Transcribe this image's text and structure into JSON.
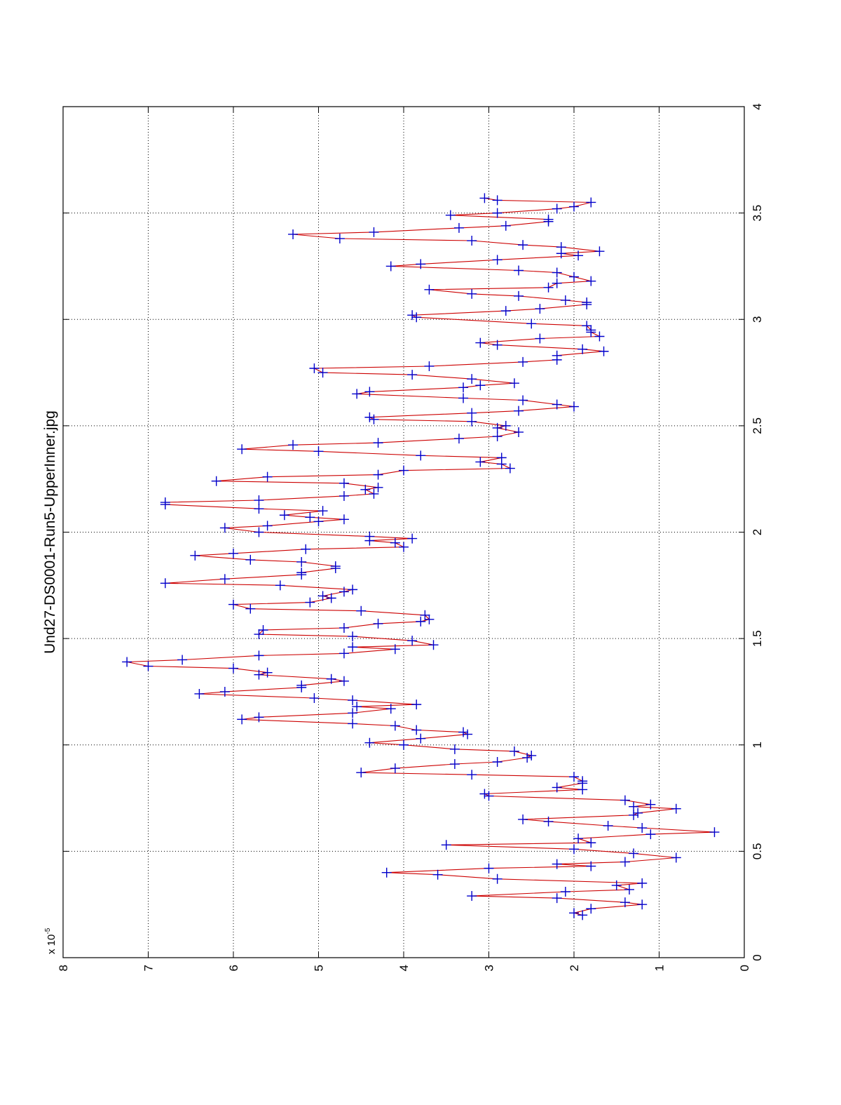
{
  "chart_data": {
    "type": "line",
    "title": "Und27-DS0001-Run5-UpperInner.jpg",
    "xlabel": "",
    "ylabel": "",
    "x_range": [
      0,
      4
    ],
    "y_range": [
      0,
      8
    ],
    "x_ticks": [
      "0",
      "0.5",
      "1",
      "1.5",
      "2",
      "2.5",
      "3",
      "3.5",
      "4"
    ],
    "y_ticks": [
      "0",
      "1",
      "2",
      "3",
      "4",
      "5",
      "6",
      "7",
      "8"
    ],
    "y_exponent": {
      "base": "x 10",
      "power": "-5"
    },
    "grid": true,
    "orientation": "rotated-90-ccw",
    "line_color": "#cc0000",
    "marker_color": "#0000cc",
    "marker": "+",
    "series": [
      {
        "name": "UpperInner",
        "points": [
          [
            0.2,
            1.9
          ],
          [
            0.21,
            2.0
          ],
          [
            0.23,
            1.8
          ],
          [
            0.25,
            1.2
          ],
          [
            0.26,
            1.4
          ],
          [
            0.28,
            2.2
          ],
          [
            0.29,
            3.2
          ],
          [
            0.31,
            2.1
          ],
          [
            0.32,
            1.35
          ],
          [
            0.34,
            1.5
          ],
          [
            0.35,
            1.2
          ],
          [
            0.37,
            2.9
          ],
          [
            0.39,
            3.6
          ],
          [
            0.4,
            4.2
          ],
          [
            0.42,
            3.0
          ],
          [
            0.43,
            1.8
          ],
          [
            0.44,
            2.2
          ],
          [
            0.45,
            1.4
          ],
          [
            0.47,
            0.8
          ],
          [
            0.49,
            1.3
          ],
          [
            0.51,
            2.0
          ],
          [
            0.53,
            3.5
          ],
          [
            0.54,
            1.8
          ],
          [
            0.56,
            1.95
          ],
          [
            0.58,
            1.1
          ],
          [
            0.59,
            0.35
          ],
          [
            0.61,
            1.2
          ],
          [
            0.62,
            1.6
          ],
          [
            0.64,
            2.3
          ],
          [
            0.65,
            2.6
          ],
          [
            0.67,
            1.3
          ],
          [
            0.68,
            1.25
          ],
          [
            0.7,
            0.8
          ],
          [
            0.71,
            1.3
          ],
          [
            0.72,
            1.1
          ],
          [
            0.74,
            1.4
          ],
          [
            0.76,
            3.0
          ],
          [
            0.77,
            3.05
          ],
          [
            0.79,
            1.9
          ],
          [
            0.8,
            2.2
          ],
          [
            0.82,
            1.9
          ],
          [
            0.83,
            1.9
          ],
          [
            0.85,
            2.0
          ],
          [
            0.86,
            3.2
          ],
          [
            0.87,
            4.5
          ],
          [
            0.89,
            4.1
          ],
          [
            0.91,
            3.4
          ],
          [
            0.92,
            2.9
          ],
          [
            0.94,
            2.55
          ],
          [
            0.95,
            2.5
          ],
          [
            0.97,
            2.7
          ],
          [
            0.98,
            3.4
          ],
          [
            1.0,
            4.0
          ],
          [
            1.01,
            4.4
          ],
          [
            1.03,
            3.8
          ],
          [
            1.05,
            3.25
          ],
          [
            1.06,
            3.3
          ],
          [
            1.07,
            3.85
          ],
          [
            1.09,
            4.1
          ],
          [
            1.1,
            4.6
          ],
          [
            1.12,
            5.9
          ],
          [
            1.13,
            5.7
          ],
          [
            1.15,
            4.6
          ],
          [
            1.17,
            4.15
          ],
          [
            1.18,
            4.55
          ],
          [
            1.19,
            3.85
          ],
          [
            1.21,
            4.6
          ],
          [
            1.22,
            5.05
          ],
          [
            1.24,
            6.4
          ],
          [
            1.25,
            6.1
          ],
          [
            1.27,
            5.2
          ],
          [
            1.28,
            5.2
          ],
          [
            1.3,
            4.7
          ],
          [
            1.31,
            4.85
          ],
          [
            1.33,
            5.7
          ],
          [
            1.34,
            5.6
          ],
          [
            1.36,
            6.0
          ],
          [
            1.37,
            7.0
          ],
          [
            1.39,
            7.25
          ],
          [
            1.4,
            6.6
          ],
          [
            1.42,
            5.7
          ],
          [
            1.43,
            4.7
          ],
          [
            1.45,
            4.1
          ],
          [
            1.46,
            4.6
          ],
          [
            1.47,
            3.65
          ],
          [
            1.49,
            3.9
          ],
          [
            1.51,
            4.6
          ],
          [
            1.52,
            5.7
          ],
          [
            1.54,
            5.65
          ],
          [
            1.55,
            4.7
          ],
          [
            1.57,
            4.3
          ],
          [
            1.58,
            3.8
          ],
          [
            1.59,
            3.7
          ],
          [
            1.61,
            3.75
          ],
          [
            1.63,
            4.5
          ],
          [
            1.64,
            5.8
          ],
          [
            1.66,
            6.0
          ],
          [
            1.67,
            5.1
          ],
          [
            1.69,
            4.85
          ],
          [
            1.7,
            4.95
          ],
          [
            1.72,
            4.7
          ],
          [
            1.73,
            4.6
          ],
          [
            1.75,
            5.45
          ],
          [
            1.76,
            6.8
          ],
          [
            1.78,
            6.1
          ],
          [
            1.8,
            5.2
          ],
          [
            1.81,
            5.2
          ],
          [
            1.83,
            4.8
          ],
          [
            1.84,
            4.8
          ],
          [
            1.86,
            5.2
          ],
          [
            1.87,
            5.8
          ],
          [
            1.89,
            6.45
          ],
          [
            1.9,
            6.0
          ],
          [
            1.92,
            5.15
          ],
          [
            1.93,
            4.0
          ],
          [
            1.95,
            4.1
          ],
          [
            1.96,
            4.4
          ],
          [
            1.97,
            3.9
          ],
          [
            1.98,
            4.4
          ],
          [
            2.0,
            5.7
          ],
          [
            2.02,
            6.1
          ],
          [
            2.03,
            5.6
          ],
          [
            2.05,
            5.0
          ],
          [
            2.06,
            4.7
          ],
          [
            2.07,
            5.1
          ],
          [
            2.08,
            5.4
          ],
          [
            2.1,
            4.95
          ],
          [
            2.11,
            5.7
          ],
          [
            2.13,
            6.8
          ],
          [
            2.14,
            6.8
          ],
          [
            2.15,
            5.7
          ],
          [
            2.17,
            4.7
          ],
          [
            2.18,
            4.35
          ],
          [
            2.2,
            4.45
          ],
          [
            2.21,
            4.3
          ],
          [
            2.23,
            4.7
          ],
          [
            2.24,
            6.2
          ],
          [
            2.26,
            5.6
          ],
          [
            2.27,
            4.3
          ],
          [
            2.29,
            4.0
          ],
          [
            2.3,
            2.75
          ],
          [
            2.32,
            2.85
          ],
          [
            2.33,
            3.1
          ],
          [
            2.35,
            2.85
          ],
          [
            2.36,
            3.8
          ],
          [
            2.38,
            5.0
          ],
          [
            2.39,
            5.9
          ],
          [
            2.41,
            5.3
          ],
          [
            2.42,
            4.3
          ],
          [
            2.44,
            3.35
          ],
          [
            2.45,
            2.9
          ],
          [
            2.47,
            2.65
          ],
          [
            2.49,
            2.9
          ],
          [
            2.5,
            2.8
          ],
          [
            2.52,
            3.2
          ],
          [
            2.53,
            4.35
          ],
          [
            2.54,
            4.4
          ],
          [
            2.56,
            3.2
          ],
          [
            2.57,
            2.65
          ],
          [
            2.59,
            2.0
          ],
          [
            2.6,
            2.2
          ],
          [
            2.62,
            2.6
          ],
          [
            2.63,
            3.3
          ],
          [
            2.65,
            4.55
          ],
          [
            2.66,
            4.4
          ],
          [
            2.68,
            3.3
          ],
          [
            2.69,
            3.1
          ],
          [
            2.7,
            2.7
          ],
          [
            2.72,
            3.2
          ],
          [
            2.74,
            3.9
          ],
          [
            2.75,
            4.95
          ],
          [
            2.77,
            5.05
          ],
          [
            2.78,
            3.7
          ],
          [
            2.8,
            2.6
          ],
          [
            2.81,
            2.2
          ],
          [
            2.83,
            2.2
          ],
          [
            2.85,
            1.65
          ],
          [
            2.86,
            1.9
          ],
          [
            2.88,
            2.9
          ],
          [
            2.89,
            3.1
          ],
          [
            2.91,
            2.4
          ],
          [
            2.92,
            1.7
          ],
          [
            2.94,
            1.8
          ],
          [
            2.95,
            1.8
          ],
          [
            2.97,
            1.85
          ],
          [
            2.98,
            2.5
          ],
          [
            3.01,
            3.85
          ],
          [
            3.02,
            3.9
          ],
          [
            3.04,
            2.8
          ],
          [
            3.05,
            2.4
          ],
          [
            3.07,
            1.85
          ],
          [
            3.08,
            1.85
          ],
          [
            3.09,
            2.1
          ],
          [
            3.11,
            2.65
          ],
          [
            3.12,
            3.2
          ],
          [
            3.14,
            3.7
          ],
          [
            3.15,
            2.3
          ],
          [
            3.17,
            2.2
          ],
          [
            3.18,
            1.8
          ],
          [
            3.2,
            2.0
          ],
          [
            3.22,
            2.2
          ],
          [
            3.23,
            2.65
          ],
          [
            3.25,
            4.15
          ],
          [
            3.26,
            3.8
          ],
          [
            3.28,
            2.9
          ],
          [
            3.3,
            1.95
          ],
          [
            3.31,
            2.15
          ],
          [
            3.32,
            1.7
          ],
          [
            3.34,
            2.15
          ],
          [
            3.35,
            2.6
          ],
          [
            3.37,
            3.2
          ],
          [
            3.38,
            4.75
          ],
          [
            3.4,
            5.3
          ],
          [
            3.41,
            4.35
          ],
          [
            3.43,
            3.35
          ],
          [
            3.44,
            2.8
          ],
          [
            3.46,
            2.3
          ],
          [
            3.47,
            2.3
          ],
          [
            3.49,
            3.45
          ],
          [
            3.5,
            2.9
          ],
          [
            3.52,
            2.2
          ],
          [
            3.53,
            2.0
          ],
          [
            3.55,
            1.8
          ],
          [
            3.56,
            2.9
          ],
          [
            3.57,
            3.05
          ]
        ]
      }
    ]
  }
}
